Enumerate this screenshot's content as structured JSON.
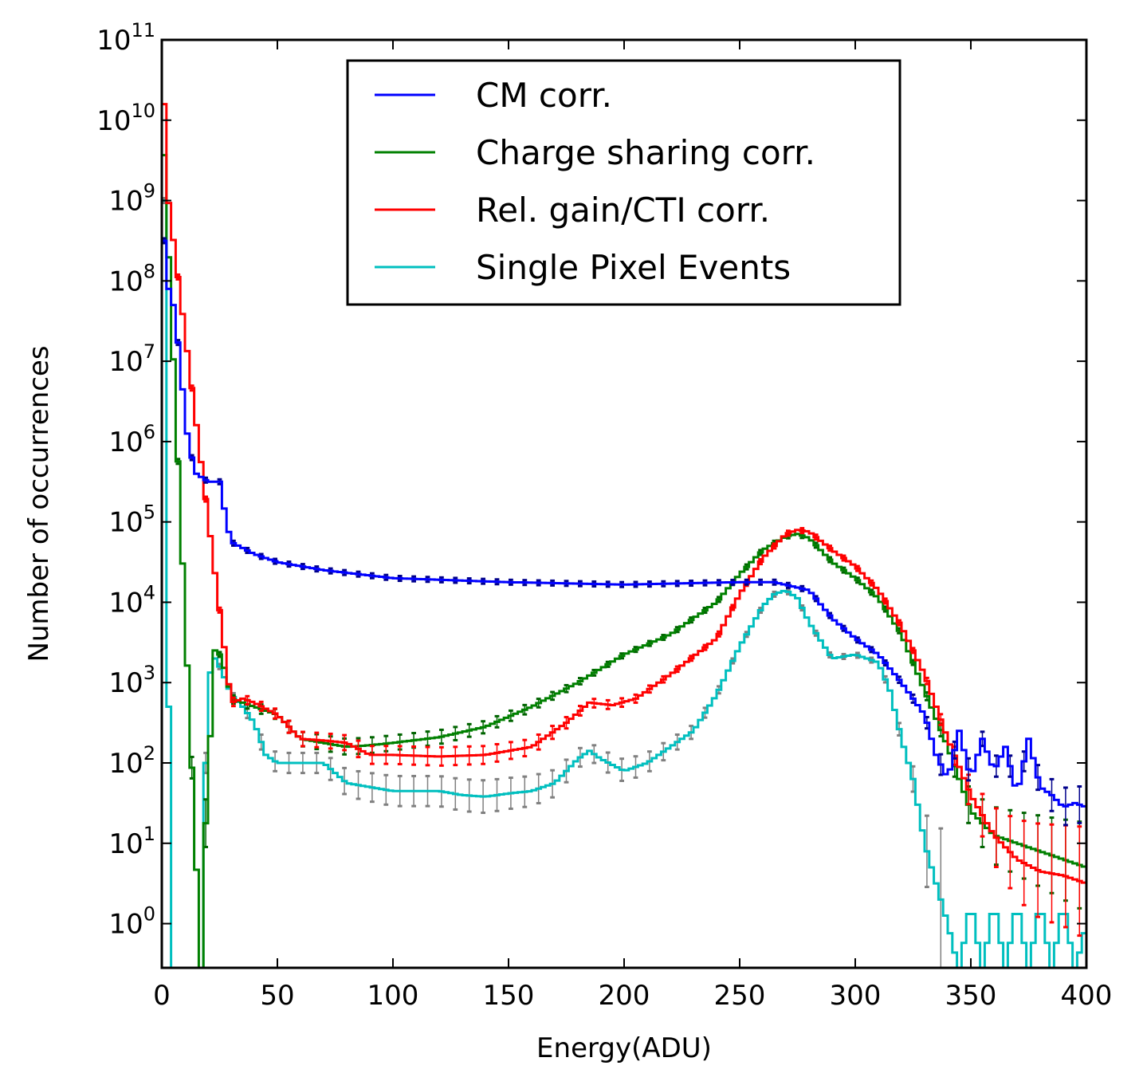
{
  "chart_data": {
    "type": "line",
    "title": "",
    "xlabel": "Energy(ADU)",
    "ylabel": "Number of occurrences",
    "xlim": [
      0,
      400
    ],
    "ylim_log10": [
      -0.55,
      11
    ],
    "yscale": "log",
    "grid": false,
    "legend_placement": "top-center",
    "x_ticks": [
      0,
      50,
      100,
      150,
      200,
      250,
      300,
      350,
      400
    ],
    "y_ticks": [
      {
        "base": "10",
        "exp": "0"
      },
      {
        "base": "10",
        "exp": "1"
      },
      {
        "base": "10",
        "exp": "2"
      },
      {
        "base": "10",
        "exp": "3"
      },
      {
        "base": "10",
        "exp": "4"
      },
      {
        "base": "10",
        "exp": "5"
      },
      {
        "base": "10",
        "exp": "6"
      },
      {
        "base": "10",
        "exp": "7"
      },
      {
        "base": "10",
        "exp": "8"
      },
      {
        "base": "10",
        "exp": "9"
      },
      {
        "base": "10",
        "exp": "10"
      },
      {
        "base": "10",
        "exp": "11"
      }
    ],
    "series": [
      {
        "name": "CM corr.",
        "color": "#0000ff",
        "errorbar_color": "#00008b",
        "x": [
          0,
          2,
          5,
          8,
          10,
          12,
          15,
          20,
          25,
          28,
          30,
          40,
          50,
          70,
          100,
          150,
          200,
          250,
          265,
          280,
          290,
          300,
          310,
          320,
          330,
          335,
          340,
          345,
          350,
          355,
          360,
          365,
          370,
          375,
          380,
          385,
          390,
          395,
          400
        ],
        "log10y": [
          9.0,
          8.0,
          7.7,
          7.0,
          6.3,
          5.9,
          5.6,
          5.5,
          5.5,
          5.0,
          4.75,
          4.6,
          4.5,
          4.4,
          4.3,
          4.25,
          4.22,
          4.25,
          4.25,
          4.15,
          3.8,
          3.55,
          3.35,
          3.0,
          2.6,
          2.1,
          1.8,
          2.4,
          1.8,
          2.3,
          1.9,
          2.2,
          1.6,
          2.3,
          1.7,
          1.6,
          1.45,
          1.5,
          1.45
        ]
      },
      {
        "name": "Charge sharing corr.",
        "color": "#008000",
        "errorbar_color": "#006400",
        "x": [
          0,
          17,
          18,
          20,
          23,
          25,
          28,
          30,
          35,
          40,
          50,
          60,
          70,
          80,
          90,
          100,
          120,
          140,
          160,
          180,
          200,
          220,
          240,
          250,
          260,
          270,
          275,
          280,
          290,
          300,
          310,
          320,
          330,
          340,
          350,
          360,
          370,
          380,
          390,
          400
        ],
        "log10y": [
          10.2,
          -0.6,
          0.7,
          1.8,
          3.4,
          3.35,
          3.1,
          2.8,
          2.75,
          2.7,
          2.6,
          2.3,
          2.25,
          2.2,
          2.22,
          2.25,
          2.32,
          2.45,
          2.7,
          3.0,
          3.35,
          3.6,
          4.0,
          4.35,
          4.65,
          4.82,
          4.85,
          4.8,
          4.5,
          4.3,
          4.05,
          3.6,
          2.9,
          2.2,
          1.4,
          1.1,
          1.0,
          0.9,
          0.8,
          0.7
        ]
      },
      {
        "name": "Rel. gain/CTI corr.",
        "color": "#ff0000",
        "errorbar_color": "#ff0000",
        "x": [
          0,
          1,
          2,
          30,
          35,
          40,
          50,
          60,
          70,
          80,
          90,
          100,
          120,
          140,
          160,
          175,
          185,
          195,
          205,
          220,
          240,
          250,
          260,
          270,
          275,
          280,
          290,
          300,
          310,
          320,
          330,
          340,
          350,
          360,
          370,
          380,
          390,
          400
        ],
        "log10y": [
          10.2,
          10.2,
          9.2,
          2.75,
          2.8,
          2.75,
          2.6,
          2.3,
          2.28,
          2.25,
          2.1,
          2.1,
          2.08,
          2.1,
          2.2,
          2.5,
          2.75,
          2.72,
          2.8,
          3.1,
          3.55,
          4.1,
          4.55,
          4.85,
          4.9,
          4.88,
          4.65,
          4.45,
          4.15,
          3.7,
          3.1,
          2.3,
          1.6,
          1.1,
          0.8,
          0.65,
          0.6,
          0.5
        ]
      },
      {
        "name": "Single Pixel Events",
        "color": "#00bfbf",
        "errorbar_color": "#808080",
        "x": [
          0,
          1,
          2,
          4,
          17,
          18,
          19,
          20,
          22,
          23,
          25,
          28,
          30,
          35,
          40,
          45,
          50,
          60,
          70,
          80,
          90,
          100,
          110,
          120,
          130,
          140,
          150,
          160,
          170,
          180,
          185,
          190,
          200,
          210,
          220,
          230,
          240,
          250,
          260,
          265,
          270,
          275,
          280,
          290,
          300,
          310,
          315,
          320,
          325,
          330,
          335,
          340,
          345,
          350,
          355,
          360,
          365,
          370,
          375,
          380,
          385,
          390,
          395,
          400
        ],
        "log10y": [
          -0.6,
          9.0,
          6.0,
          -0.6,
          -0.6,
          0.6,
          2.0,
          3.0,
          3.25,
          3.3,
          3.2,
          3.0,
          2.85,
          2.7,
          2.5,
          2.1,
          2.0,
          2.0,
          2.0,
          1.75,
          1.7,
          1.65,
          1.65,
          1.65,
          1.6,
          1.58,
          1.62,
          1.65,
          1.75,
          2.05,
          2.15,
          2.05,
          1.9,
          2.0,
          2.2,
          2.4,
          2.85,
          3.45,
          3.95,
          4.1,
          4.15,
          4.05,
          3.75,
          3.3,
          3.35,
          3.25,
          2.9,
          2.3,
          1.8,
          1.0,
          0.5,
          0.0,
          -0.6,
          0.3,
          -0.6,
          0.3,
          -0.6,
          0.3,
          -0.6,
          0.3,
          -0.6,
          0.3,
          -0.6,
          0.0
        ]
      }
    ]
  }
}
